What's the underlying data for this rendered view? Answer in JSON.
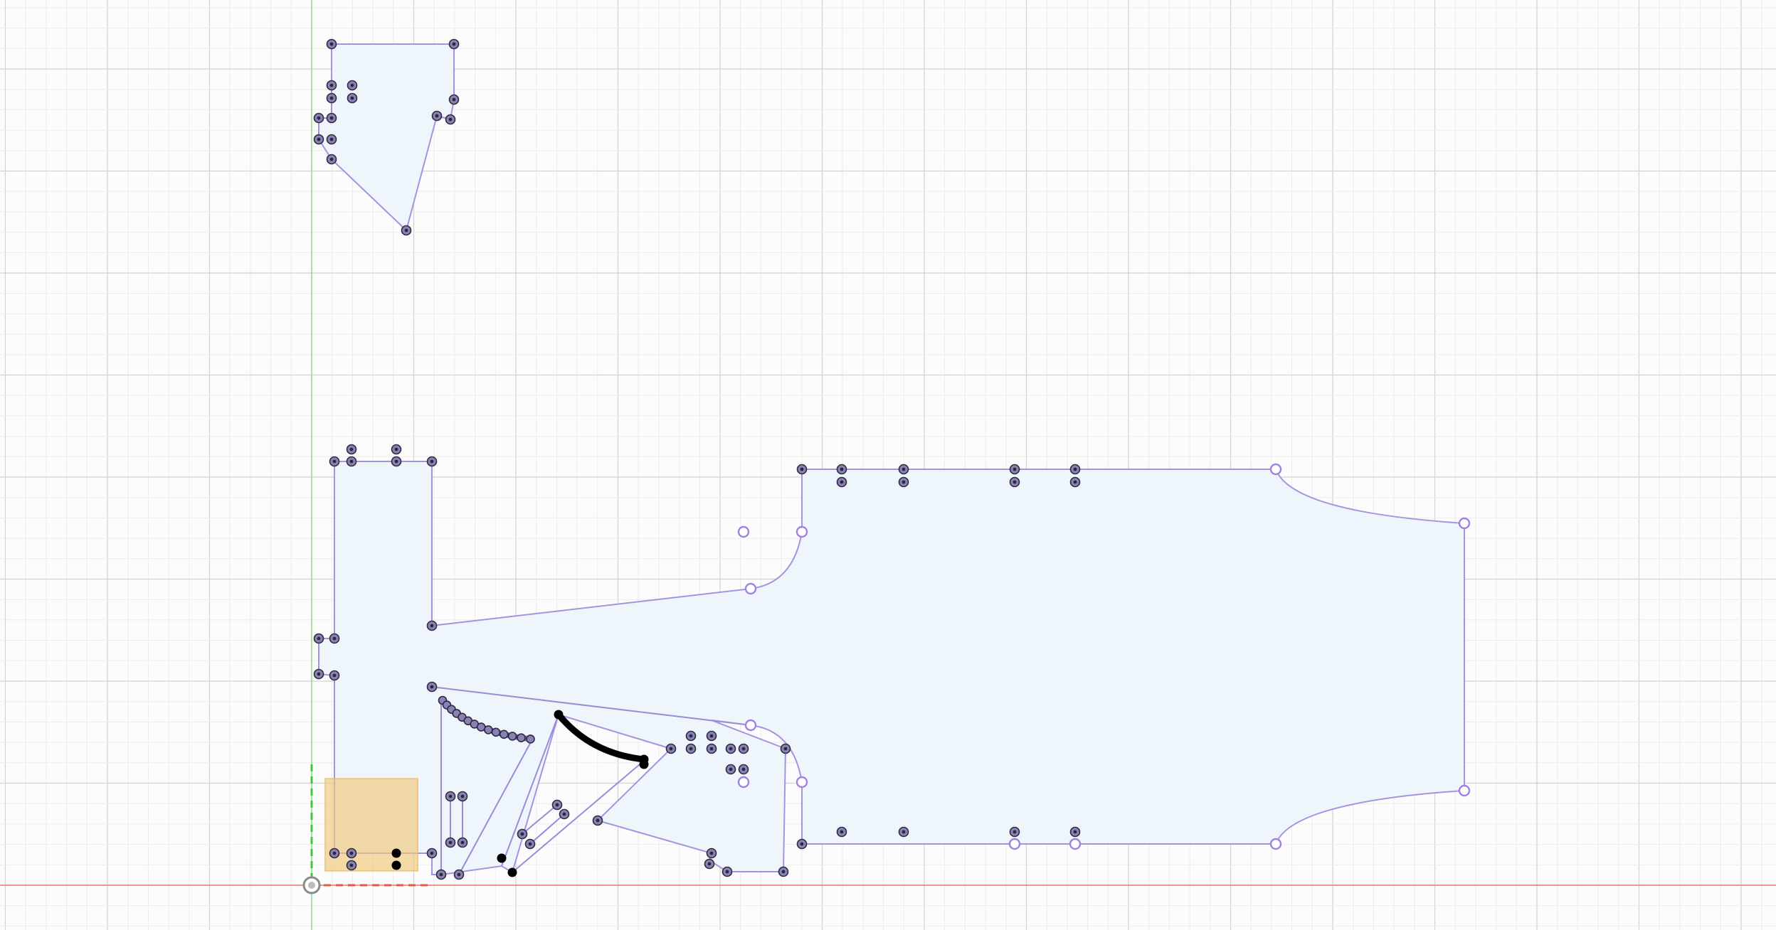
{
  "canvas": {
    "name": "sketch-canvas",
    "background": "#fcfcfc",
    "colors": {
      "profile_fill": "#eef6fc",
      "profile_stroke": "#a494e0",
      "axis_x": "#e05a48",
      "axis_y": "#5fd25f",
      "sketch_point": "#2b2838",
      "open_point": "#a080e0",
      "selection_box": "#f0c878"
    },
    "origin_icon": "origin-point-icon"
  }
}
